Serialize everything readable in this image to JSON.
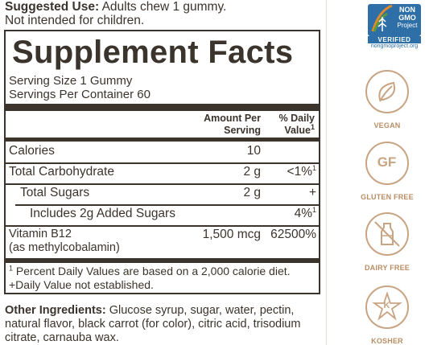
{
  "suggested_use": {
    "label": "Suggested Use:",
    "text1": " Adults chew 1 gummy.",
    "text2": "Not intended for children."
  },
  "facts": {
    "title": "Supplement Facts",
    "serving_size": "Serving Size 1 Gummy",
    "servings_per_container": "Servings Per Container 60",
    "header_amount_1": "Amount Per",
    "header_amount_2": "Serving",
    "header_dv_1": "% Daily",
    "header_dv_2": "Value",
    "header_dv_sup": "1",
    "rows": [
      {
        "name": "Calories",
        "amount": "10",
        "dv": "",
        "dv_sup": ""
      },
      {
        "name": "Total Carbohydrate",
        "amount": "2 g",
        "dv": "<1%",
        "dv_sup": "1"
      },
      {
        "name": "Total Sugars",
        "amount": "2 g",
        "dv": "+",
        "dv_sup": ""
      },
      {
        "name": "Includes 2g Added Sugars",
        "amount": "",
        "dv": "4%",
        "dv_sup": "1"
      },
      {
        "name": "Vitamin B12",
        "name2": "(as methylcobalamin)",
        "amount": "1,500 mcg",
        "dv": "62500%",
        "dv_sup": ""
      }
    ],
    "footnote_sup": "1",
    "footnote1": " Percent Daily Values are based on a 2,000 calorie diet.",
    "footnote2": "+Daily Value not established."
  },
  "other_ingredients": {
    "label": "Other Ingredients:",
    "text": " Glucose syrup, sugar, water, pectin, natural flavor, black carrot (for color), citric acid, trisodium citrate, carnauba wax."
  },
  "certifications": {
    "nongmo_top": "NON",
    "nongmo_mid": "GMO",
    "nongmo_project": "Project",
    "nongmo_verified": "VERIFIED",
    "nongmo_url": "nongmoproject.org",
    "badges": [
      {
        "label": "VEGAN",
        "icon": "leaf-icon"
      },
      {
        "label": "GLUTEN FREE",
        "icon": "gf-icon",
        "icon_text": "GF"
      },
      {
        "label": "DAIRY FREE",
        "icon": "milk-bottle-crossed-icon"
      },
      {
        "label": "KOSHER",
        "icon": "kosher-star-icon",
        "icon_text": "K"
      }
    ]
  },
  "colors": {
    "text": "#3b342c",
    "badge": "#c8a482",
    "nongmo_blue": "#2f6fa8",
    "nongmo_green": "#5a9a3a",
    "nongmo_orange": "#e08a2a"
  }
}
